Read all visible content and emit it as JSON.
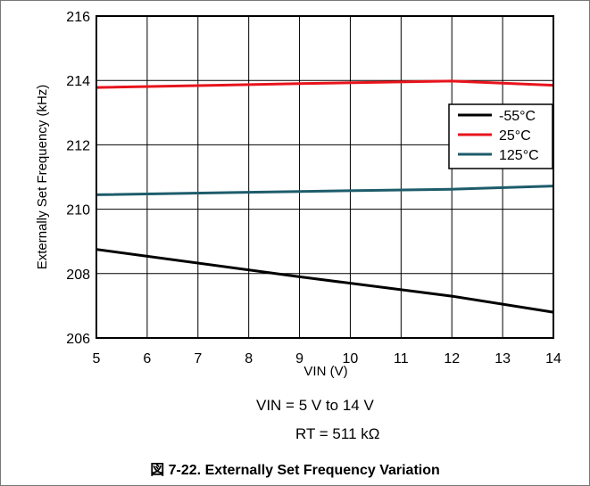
{
  "chart_data": {
    "type": "line",
    "xlabel": "VIN (V)",
    "ylabel": "Externally Set Frequency (kHz)",
    "xlim": [
      5,
      14
    ],
    "ylim": [
      206,
      216
    ],
    "xticks": [
      5,
      6,
      7,
      8,
      9,
      10,
      11,
      12,
      13,
      14
    ],
    "yticks": [
      206,
      208,
      210,
      212,
      214,
      216
    ],
    "grid": true,
    "legend_position": "right",
    "series": [
      {
        "name": "-55°C",
        "color": "#000000",
        "x": [
          5,
          9,
          12,
          14
        ],
        "y": [
          208.75,
          207.9,
          207.3,
          206.8
        ]
      },
      {
        "name": "25°C",
        "color": "#e8141c",
        "x": [
          5,
          9,
          12,
          14
        ],
        "y": [
          213.78,
          213.9,
          213.98,
          213.85
        ]
      },
      {
        "name": "125°C",
        "color": "#1d5c6b",
        "x": [
          5,
          9,
          12,
          14
        ],
        "y": [
          210.45,
          210.55,
          210.62,
          210.72
        ]
      }
    ]
  },
  "conditions": {
    "line1": "VIN = 5 V to 14 V",
    "line2": "RT = 511 kΩ"
  },
  "caption": "図 7-22. Externally Set Frequency Variation"
}
